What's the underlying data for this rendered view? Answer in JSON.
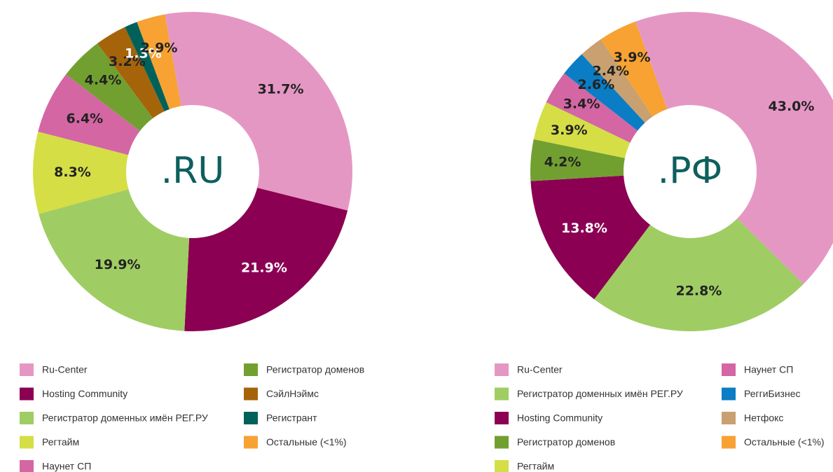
{
  "chart_data": [
    {
      "type": "pie",
      "center_label": ".RU",
      "categories": [
        "Ru-Center",
        "Hosting Community",
        "Регистратор доменных имён РЕГ.РУ",
        "Регтайм",
        "Наунет СП",
        "Регистратор доменов",
        "СэйлНэймс",
        "Регистрант",
        "Остальные (<1%)"
      ],
      "values": [
        31.7,
        21.9,
        19.9,
        8.3,
        6.4,
        4.4,
        3.2,
        1.3,
        2.9
      ],
      "value_labels": [
        "31.7%",
        "21.9%",
        "19.9%",
        "8.3%",
        "6.4%",
        "4.4%",
        "3.2%",
        "1.3%",
        "2.9%"
      ],
      "colors": [
        "#e597c4",
        "#8b0052",
        "#9fcd63",
        "#d5de45",
        "#d466a4",
        "#72a030",
        "#a5640a",
        "#00615a",
        "#f7a232"
      ]
    },
    {
      "type": "pie",
      "center_label": ".РФ",
      "categories": [
        "Ru-Center",
        "Регистратор доменных имён РЕГ.РУ",
        "Hosting Community",
        "Регистратор доменов",
        "Регтайм",
        "Наунет СП",
        "РеггиБизнес",
        "Нетфокс",
        "Остальные (<1%)"
      ],
      "values": [
        43.0,
        22.8,
        13.8,
        4.2,
        3.9,
        3.4,
        2.6,
        2.4,
        3.9
      ],
      "value_labels": [
        "43.0%",
        "22.8%",
        "13.8%",
        "4.2%",
        "3.9%",
        "3.4%",
        "2.6%",
        "2.4%",
        "3.9%"
      ],
      "colors": [
        "#e597c4",
        "#9fcd63",
        "#8b0052",
        "#72a030",
        "#d5de45",
        "#d466a4",
        "#0a7dc4",
        "#c9a070",
        "#f7a232"
      ]
    }
  ]
}
